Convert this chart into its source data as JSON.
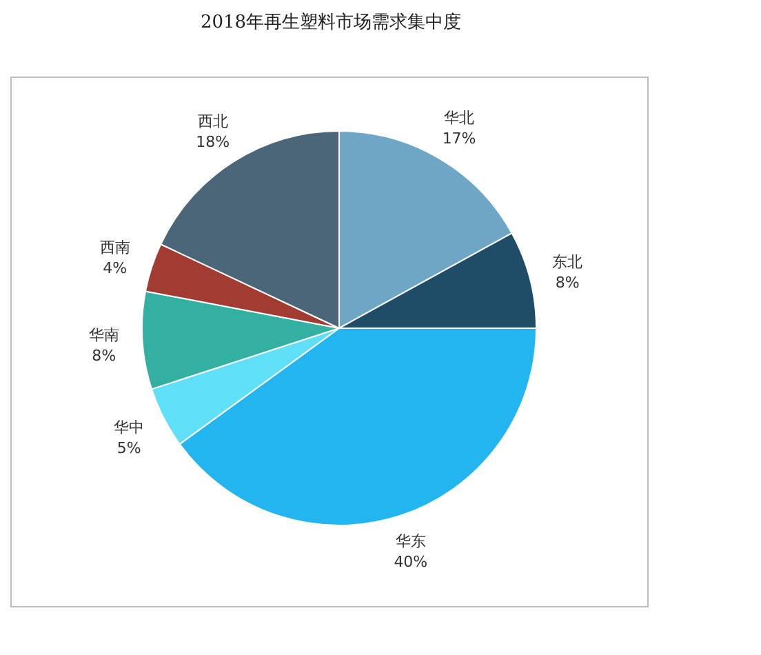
{
  "chart_data": {
    "type": "pie",
    "title": "2018年再生塑料市场需求集中度",
    "categories": [
      "华北",
      "东北",
      "华东",
      "华中",
      "华南",
      "西南",
      "西北"
    ],
    "values": [
      17,
      8,
      40,
      5,
      8,
      4,
      18
    ],
    "colors": [
      "#6fa6c6",
      "#1f4c66",
      "#22b5f0",
      "#5fe0f8",
      "#34b0a2",
      "#a23b32",
      "#4b6579"
    ],
    "value_labels": [
      "17%",
      "8%",
      "40%",
      "5%",
      "8%",
      "4%",
      "18%"
    ]
  }
}
